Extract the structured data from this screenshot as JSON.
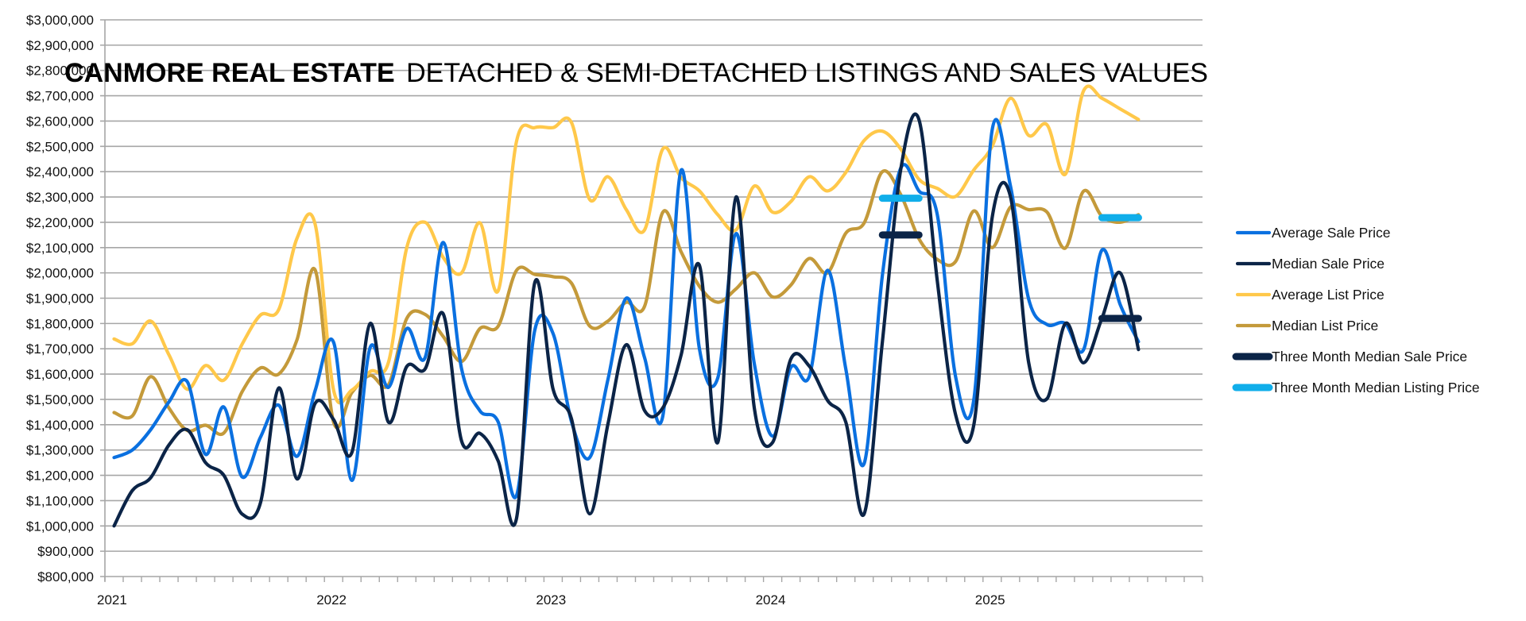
{
  "chart_data": {
    "type": "line",
    "title_bold": "CANMORE REAL ESTATE",
    "title_rest": "DETACHED & SEMI-DETACHED LISTINGS AND SALES VALUES",
    "xlabel": "",
    "ylabel": "",
    "ylim": [
      800000,
      3000000
    ],
    "ytick_step": 100000,
    "grid": true,
    "legend_position": "right",
    "x_start": "2021-01",
    "months_in_axis": 60,
    "year_labels": [
      "2021",
      "2022",
      "2023",
      "2024",
      "2025"
    ],
    "x": [
      "2021-01",
      "2021-02",
      "2021-03",
      "2021-04",
      "2021-05",
      "2021-06",
      "2021-07",
      "2021-08",
      "2021-09",
      "2021-10",
      "2021-11",
      "2021-12",
      "2022-01",
      "2022-02",
      "2022-03",
      "2022-04",
      "2022-05",
      "2022-06",
      "2022-07",
      "2022-08",
      "2022-09",
      "2022-10",
      "2022-11",
      "2022-12",
      "2023-01",
      "2023-02",
      "2023-03",
      "2023-04",
      "2023-05",
      "2023-06",
      "2023-07",
      "2023-08",
      "2023-09",
      "2023-10",
      "2023-11",
      "2023-12",
      "2024-01",
      "2024-02",
      "2024-03",
      "2024-04",
      "2024-05",
      "2024-06",
      "2024-07",
      "2024-08",
      "2024-09",
      "2024-10",
      "2024-11",
      "2024-12",
      "2025-01",
      "2025-02",
      "2025-03",
      "2025-04",
      "2025-05",
      "2025-06",
      "2025-07",
      "2025-08",
      "2025-09"
    ],
    "series": [
      {
        "name": "Average Sale Price",
        "color": "#0A70E0",
        "values": [
          1270000,
          1300000,
          1380000,
          1490000,
          1570000,
          1283000,
          1470000,
          1194000,
          1350000,
          1477000,
          1275000,
          1537000,
          1726000,
          1180000,
          1705000,
          1548000,
          1780000,
          1665000,
          2120000,
          1620000,
          1455000,
          1410000,
          1120000,
          1774000,
          1760000,
          1414000,
          1270000,
          1580000,
          1900000,
          1665000,
          1435000,
          2406000,
          1700000,
          1585000,
          2155000,
          1640000,
          1355000,
          1627000,
          1590000,
          2010000,
          1620000,
          1246000,
          1990000,
          2413000,
          2324000,
          2230000,
          1590000,
          1500000,
          2564000,
          2344000,
          1896000,
          1796000,
          1800000,
          1697000,
          2090000,
          1875000,
          1728000
        ]
      },
      {
        "name": "Median Sale Price",
        "color": "#0B2447",
        "values": [
          1000000,
          1140000,
          1190000,
          1320000,
          1380000,
          1250000,
          1200000,
          1047000,
          1090000,
          1545000,
          1186000,
          1485000,
          1420000,
          1290000,
          1800000,
          1410000,
          1630000,
          1620000,
          1837000,
          1335000,
          1366000,
          1256000,
          1030000,
          1962000,
          1540000,
          1425000,
          1048000,
          1404000,
          1716000,
          1456000,
          1467000,
          1676000,
          2030000,
          1330000,
          2300000,
          1465000,
          1330000,
          1660000,
          1632000,
          1496000,
          1410000,
          1047000,
          1727000,
          2407000,
          2606000,
          1968000,
          1440000,
          1400000,
          2218000,
          2302000,
          1645000,
          1503000,
          1800000,
          1645000,
          1820000,
          2000000,
          1697000
        ]
      },
      {
        "name": "Average List Price",
        "color": "#FFC84A",
        "values": [
          1739000,
          1720000,
          1810000,
          1676000,
          1540000,
          1634000,
          1576000,
          1718000,
          1833000,
          1855000,
          2137000,
          2190000,
          1537000,
          1537000,
          1610000,
          1647000,
          2100000,
          2200000,
          2060000,
          2000000,
          2198000,
          1930000,
          2520000,
          2574000,
          2574000,
          2595000,
          2290000,
          2380000,
          2250000,
          2170000,
          2490000,
          2376000,
          2324000,
          2230000,
          2170000,
          2343000,
          2240000,
          2282000,
          2380000,
          2324000,
          2397000,
          2523000,
          2560000,
          2490000,
          2370000,
          2334000,
          2302000,
          2407000,
          2500000,
          2690000,
          2543000,
          2585000,
          2390000,
          2720000,
          2690000,
          2648000,
          2606000
        ]
      },
      {
        "name": "Median List Price",
        "color": "#C49A3A",
        "values": [
          1448000,
          1435000,
          1590000,
          1466000,
          1377000,
          1398000,
          1367000,
          1530000,
          1624000,
          1600000,
          1736000,
          2010000,
          1410000,
          1527000,
          1595000,
          1558000,
          1820000,
          1836000,
          1748000,
          1650000,
          1780000,
          1790000,
          2010000,
          1994000,
          1985000,
          1960000,
          1790000,
          1810000,
          1884000,
          1868000,
          2240000,
          2083000,
          1947000,
          1884000,
          1937000,
          2000000,
          1905000,
          1952000,
          2057000,
          2000000,
          2157000,
          2197000,
          2400000,
          2310000,
          2135000,
          2053000,
          2045000,
          2245000,
          2100000,
          2260000,
          2250000,
          2240000,
          2098000,
          2323000,
          2224000,
          2200000,
          2230000
        ]
      },
      {
        "name": "Three Month Median Sale Price",
        "color": "#0B2447",
        "segments": [
          {
            "from": "2024-07",
            "to": "2024-09",
            "value": 2150000
          },
          {
            "from": "2025-07",
            "to": "2025-09",
            "value": 1820000
          }
        ]
      },
      {
        "name": "Three Month Median Listing Price",
        "color": "#10AEEA",
        "segments": [
          {
            "from": "2024-07",
            "to": "2024-09",
            "value": 2295000
          },
          {
            "from": "2025-07",
            "to": "2025-09",
            "value": 2218000
          }
        ]
      }
    ]
  },
  "legend": {
    "items": [
      {
        "label": "Average Sale Price",
        "color": "#0A70E0",
        "thick": false
      },
      {
        "label": "Median Sale Price",
        "color": "#0B2447",
        "thick": false
      },
      {
        "label": "Average List Price",
        "color": "#FFC84A",
        "thick": false
      },
      {
        "label": "Median List Price",
        "color": "#C49A3A",
        "thick": false
      },
      {
        "label": "Three Month Median Sale Price",
        "color": "#0B2447",
        "thick": true
      },
      {
        "label": "Three Month Median Listing Price",
        "color": "#10AEEA",
        "thick": true
      }
    ]
  }
}
